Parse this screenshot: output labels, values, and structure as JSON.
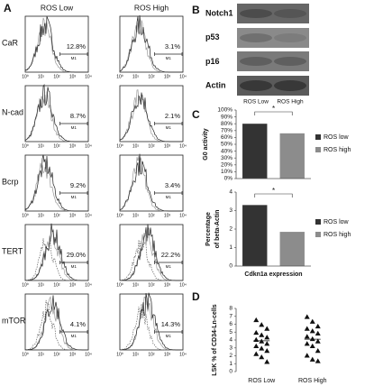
{
  "panel_labels": [
    "A",
    "B",
    "C",
    "D"
  ],
  "panel_a": {
    "columns": [
      "ROS Low",
      "ROS High"
    ],
    "rows": [
      {
        "label": "CaR",
        "values": [
          "12.8%",
          "3.1%"
        ]
      },
      {
        "label": "N-cad",
        "values": [
          "8.7%",
          "2.1%"
        ]
      },
      {
        "label": "Bcrp",
        "values": [
          "9.2%",
          "3.4%"
        ]
      },
      {
        "label": "TERT",
        "values": [
          "29.0%",
          "22.2%"
        ]
      },
      {
        "label": "mTOR",
        "values": [
          "4.1%",
          "14.3%"
        ]
      }
    ],
    "gate": "M1",
    "axis_ticks": [
      "10⁰",
      "10¹",
      "10²",
      "10³",
      "10⁴"
    ]
  },
  "panel_b": {
    "proteins": [
      "Notch1",
      "p53",
      "p16",
      "Actin"
    ],
    "lanes": [
      "ROS Low",
      "ROS High"
    ]
  },
  "chart_data": [
    {
      "type": "bar",
      "ylabel": [
        "G0 activity"
      ],
      "categories": [
        "ROS low",
        "ROS high"
      ],
      "values": [
        80,
        66
      ],
      "colors": [
        "#333333",
        "#8c8c8c"
      ],
      "ylim": [
        0,
        100
      ],
      "yticks": [
        {
          "value": 0,
          "label": "0%"
        },
        {
          "value": 10,
          "label": "10%"
        },
        {
          "value": 20,
          "label": "20%"
        },
        {
          "value": 30,
          "label": "30%"
        },
        {
          "value": 40,
          "label": "40%"
        },
        {
          "value": 50,
          "label": "50%"
        },
        {
          "value": 60,
          "label": "60%"
        },
        {
          "value": 70,
          "label": "70%"
        },
        {
          "value": 80,
          "label": "80%"
        },
        {
          "value": 90,
          "label": "90%"
        },
        {
          "value": 100,
          "label": "100%"
        }
      ],
      "annotation": "*",
      "legend": "right"
    },
    {
      "type": "bar",
      "ylabel": [
        "Percentage",
        "of beta-Actin"
      ],
      "xlabel": "Cdkn1a expression",
      "categories": [
        "ROS low",
        "ROS high"
      ],
      "values": [
        3.3,
        1.85
      ],
      "colors": [
        "#333333",
        "#8c8c8c"
      ],
      "ylim": [
        0,
        4
      ],
      "yticks": [
        0,
        1,
        2,
        3,
        4
      ],
      "annotation": "*",
      "legend": "right"
    },
    {
      "type": "scatter",
      "ylabel": [
        "LSK % of CD34-Ln-cells"
      ],
      "categories": [
        "ROS Low",
        "ROS High"
      ],
      "values": [
        [
          6.5,
          5.9,
          5.4,
          4.9,
          4.6,
          4.3,
          4.0,
          3.8,
          3.5,
          3.2,
          2.9,
          2.6,
          2.2,
          1.8,
          1.2
        ],
        [
          6.9,
          6.3,
          5.7,
          5.4,
          5.1,
          4.8,
          4.4,
          4.1,
          3.8,
          3.5,
          3.2,
          2.6,
          2.0,
          1.5,
          1.3
        ]
      ],
      "means": [
        3.9,
        4.1
      ],
      "color": "#111111",
      "ylim": [
        0,
        8
      ],
      "yticks": [
        0,
        1,
        2,
        3,
        4,
        5,
        6,
        7,
        8
      ]
    }
  ]
}
